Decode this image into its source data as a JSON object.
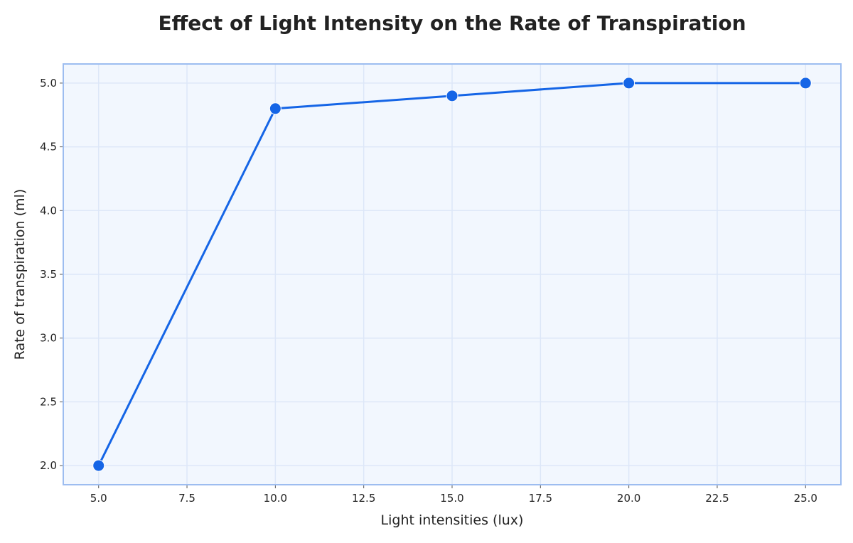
{
  "chart_data": {
    "type": "line",
    "title": "Effect of Light Intensity on the Rate of Transpiration",
    "xlabel": "Light intensities (lux)",
    "ylabel": "Rate of transpiration (ml)",
    "x": [
      5,
      10,
      15,
      20,
      25
    ],
    "series": [
      {
        "values": [
          2.0,
          4.8,
          4.9,
          5.0,
          5.0
        ]
      }
    ],
    "xlim": [
      4.0,
      26.0
    ],
    "ylim": [
      1.85,
      5.15
    ],
    "xticks": [
      5.0,
      7.5,
      10.0,
      12.5,
      15.0,
      17.5,
      20.0,
      22.5,
      25.0
    ],
    "xtick_labels": [
      "5.0",
      "7.5",
      "10.0",
      "12.5",
      "15.0",
      "17.5",
      "20.0",
      "22.5",
      "25.0"
    ],
    "yticks": [
      2.0,
      2.5,
      3.0,
      3.5,
      4.0,
      4.5,
      5.0
    ],
    "ytick_labels": [
      "2.0",
      "2.5",
      "3.0",
      "3.5",
      "4.0",
      "4.5",
      "5.0"
    ],
    "grid": true,
    "colors": {
      "line": "#1565e6",
      "plot_bg": "#f2f7fe",
      "frame": "#9dbdf0",
      "grid": "#dde7f8"
    }
  }
}
